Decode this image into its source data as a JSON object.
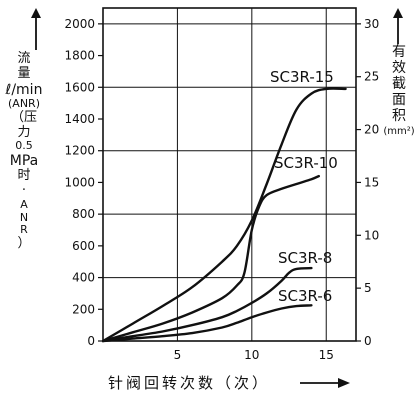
{
  "chart_data": {
    "type": "line",
    "xlabel": "针阀回转次数（次）",
    "ylabel_left": [
      "流",
      "量",
      "ℓ/min",
      "(ANR)",
      "（压",
      "力",
      "0.5",
      "MPa",
      "时",
      "·",
      "A",
      "N",
      "R",
      "）"
    ],
    "ylabel_right": [
      "有",
      "效",
      "截",
      "面",
      "积"
    ],
    "ylabel_right_unit": "(mm²)",
    "xlim": [
      0,
      17
    ],
    "ylim_left": [
      0,
      2100
    ],
    "ylim_right": [
      0,
      31.5
    ],
    "x_ticks": [
      "5",
      "10",
      "15"
    ],
    "y_left_ticks": [
      "0",
      "200",
      "400",
      "600",
      "800",
      "1000",
      "1200",
      "1400",
      "1600",
      "1800",
      "2000"
    ],
    "y_right_ticks": [
      "0",
      "5",
      "10",
      "15",
      "20",
      "25",
      "30"
    ],
    "grid": true,
    "series": [
      {
        "name": "SC3R-15",
        "x": [
          0,
          2,
          4,
          6,
          8,
          9,
          10,
          11,
          12,
          13,
          14,
          15,
          16.3
        ],
        "y": [
          0,
          110,
          220,
          340,
          500,
          600,
          760,
          990,
          1240,
          1460,
          1560,
          1590,
          1590
        ]
      },
      {
        "name": "SC3R-10",
        "x": [
          0,
          2,
          4,
          6,
          8,
          9,
          9.5,
          10,
          10.5,
          11,
          12,
          13,
          14,
          14.5
        ],
        "y": [
          0,
          55,
          110,
          180,
          270,
          350,
          430,
          700,
          850,
          920,
          960,
          990,
          1020,
          1040
        ]
      },
      {
        "name": "SC3R-8",
        "x": [
          0,
          2,
          4,
          6,
          8,
          9,
          10,
          11,
          12,
          12.5,
          13,
          14
        ],
        "y": [
          0,
          30,
          60,
          100,
          150,
          190,
          240,
          300,
          380,
          430,
          455,
          460
        ]
      },
      {
        "name": "SC3R-6",
        "x": [
          0,
          2,
          4,
          6,
          8,
          9,
          10,
          11,
          12,
          13,
          14
        ],
        "y": [
          0,
          15,
          30,
          50,
          85,
          115,
          150,
          180,
          205,
          220,
          225
        ]
      }
    ]
  }
}
